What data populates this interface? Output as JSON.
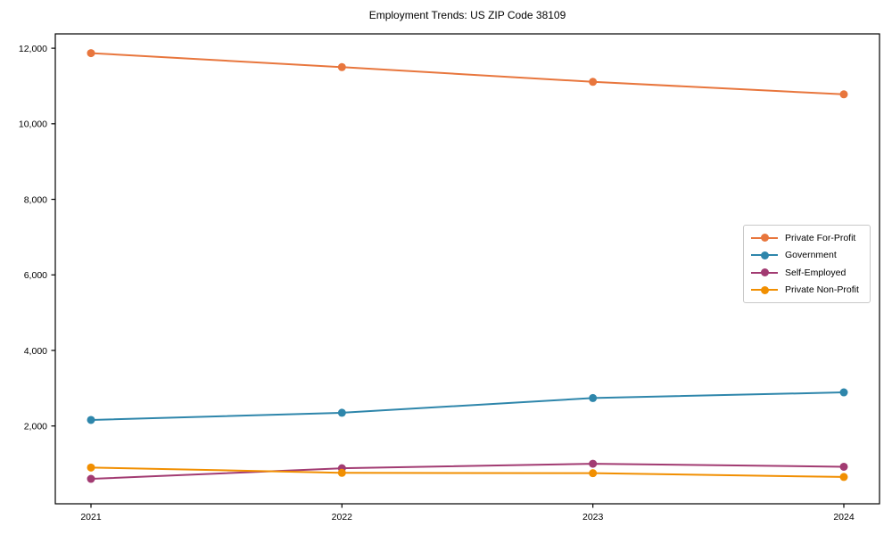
{
  "chart_data": {
    "type": "line",
    "title": "Employment Trends: US ZIP Code 38109",
    "categories": [
      "2021",
      "2022",
      "2023",
      "2024"
    ],
    "series": [
      {
        "name": "Private For-Profit",
        "color": "#E8763D",
        "values": [
          11870,
          11500,
          11110,
          10780
        ]
      },
      {
        "name": "Government",
        "color": "#2E86AB",
        "values": [
          2160,
          2350,
          2740,
          2890
        ]
      },
      {
        "name": "Self-Employed",
        "color": "#A23B72",
        "values": [
          600,
          880,
          1000,
          920
        ]
      },
      {
        "name": "Private Non-Profit",
        "color": "#F18F01",
        "values": [
          900,
          760,
          750,
          650
        ]
      }
    ],
    "xlabel": "",
    "ylabel": "",
    "ylim": [
      -60,
      12380
    ],
    "yticks": {
      "values": [
        2000,
        4000,
        6000,
        8000,
        10000,
        12000
      ],
      "labels": [
        "2,000",
        "4,000",
        "6,000",
        "8,000",
        "10,000",
        "12,000"
      ]
    },
    "grid": false,
    "legend_position": "center right",
    "axis_color": "#000000",
    "text_color": "#000000"
  }
}
